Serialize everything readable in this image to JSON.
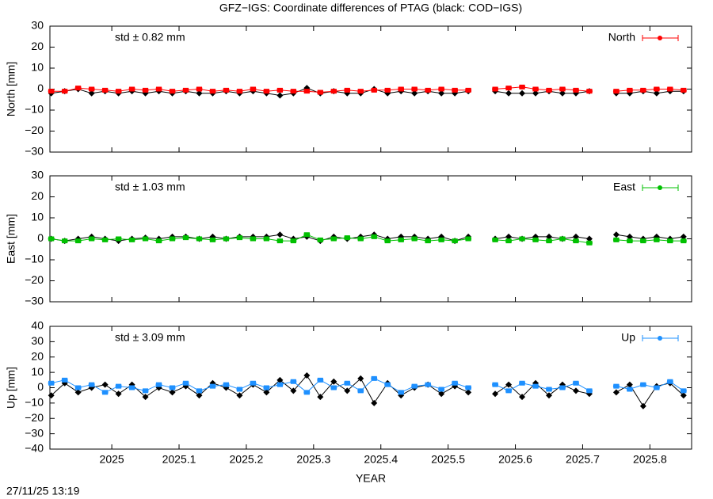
{
  "title": "GFZ−IGS: Coordinate differences of PTAG (black: COD−IGS)",
  "timestamp": "27/11/25 13:19",
  "chart_data": [
    {
      "type": "line",
      "y_label": "North [mm]",
      "annotation": "std ± 0.82 mm",
      "xlim": [
        2024.908,
        2025.862
      ],
      "xticks": [
        2025,
        2025.1,
        2025.2,
        2025.3,
        2025.4,
        2025.5,
        2025.6,
        2025.7,
        2025.8
      ],
      "ylim": [
        -30,
        30
      ],
      "yticks": [
        {
          "value": -30,
          "label": "−30"
        },
        {
          "value": -20,
          "label": "−20"
        },
        {
          "value": -10,
          "label": "−10"
        },
        0,
        10,
        20,
        30
      ],
      "x": [
        2024.91,
        2024.93,
        2024.95,
        2024.97,
        2024.99,
        2025.01,
        2025.03,
        2025.05,
        2025.07,
        2025.09,
        2025.11,
        2025.13,
        2025.15,
        2025.17,
        2025.19,
        2025.21,
        2025.23,
        2025.25,
        2025.27,
        2025.29,
        2025.31,
        2025.33,
        2025.35,
        2025.37,
        2025.39,
        2025.41,
        2025.43,
        2025.45,
        2025.47,
        2025.49,
        2025.51,
        2025.53,
        2025.55,
        2025.57,
        2025.59,
        2025.61,
        2025.63,
        2025.65,
        2025.67,
        2025.69,
        2025.71,
        2025.73,
        2025.75,
        2025.77,
        2025.79,
        2025.81,
        2025.83,
        2025.85
      ],
      "series": [
        {
          "color": "#000000",
          "values": [
            -2,
            -1,
            0,
            -2,
            -1,
            -2,
            -1,
            -2,
            -1,
            -2,
            -1,
            -2,
            -2,
            -1,
            -2,
            -1,
            -2,
            -3,
            -2,
            0.5,
            -2,
            -1,
            -2,
            -2,
            0,
            -2,
            -1,
            -2,
            -1,
            -2,
            -2,
            -1,
            null,
            -1,
            -2,
            -2,
            -2,
            -1,
            -2,
            -2,
            -1,
            null,
            -2,
            -2,
            -1,
            -2,
            -1,
            -1
          ]
        },
        {
          "name": "North",
          "color": "#ff0000",
          "values": [
            -1,
            -1,
            0.5,
            0,
            -0.5,
            -1,
            0,
            -0.5,
            0,
            -1,
            -0.5,
            0,
            -1,
            -0.5,
            -1,
            0,
            -1,
            -0.5,
            -1,
            -1,
            -1.5,
            -1,
            -0.5,
            -1,
            -0.5,
            -0.5,
            0,
            0,
            -0.5,
            0,
            -0.5,
            -0.5,
            null,
            0,
            0.5,
            1,
            0,
            -0.5,
            0,
            -0.5,
            -1,
            null,
            -1,
            -0.5,
            -0.5,
            0,
            0,
            -0.5
          ]
        }
      ]
    },
    {
      "type": "line",
      "y_label": "East [mm]",
      "annotation": "std ± 1.03 mm",
      "xlim": [
        2024.908,
        2025.862
      ],
      "xticks": [
        2025,
        2025.1,
        2025.2,
        2025.3,
        2025.4,
        2025.5,
        2025.6,
        2025.7,
        2025.8
      ],
      "ylim": [
        -30,
        30
      ],
      "yticks": [
        {
          "value": -30,
          "label": "−30"
        },
        {
          "value": -20,
          "label": "−20"
        },
        {
          "value": -10,
          "label": "−10"
        },
        0,
        10,
        20,
        30
      ],
      "x": [
        2024.91,
        2024.93,
        2024.95,
        2024.97,
        2024.99,
        2025.01,
        2025.03,
        2025.05,
        2025.07,
        2025.09,
        2025.11,
        2025.13,
        2025.15,
        2025.17,
        2025.19,
        2025.21,
        2025.23,
        2025.25,
        2025.27,
        2025.29,
        2025.31,
        2025.33,
        2025.35,
        2025.37,
        2025.39,
        2025.41,
        2025.43,
        2025.45,
        2025.47,
        2025.49,
        2025.51,
        2025.53,
        2025.55,
        2025.57,
        2025.59,
        2025.61,
        2025.63,
        2025.65,
        2025.67,
        2025.69,
        2025.71,
        2025.73,
        2025.75,
        2025.77,
        2025.79,
        2025.81,
        2025.83,
        2025.85
      ],
      "series": [
        {
          "color": "#000000",
          "values": [
            0,
            -1,
            0,
            1,
            0,
            -1,
            0,
            0.5,
            0,
            1,
            1,
            0,
            1,
            0,
            1,
            1,
            1,
            2,
            0,
            1,
            -1,
            1,
            0,
            1,
            2,
            0,
            1,
            1,
            0,
            1,
            -1,
            1,
            null,
            0,
            1,
            0,
            1,
            1,
            0,
            1,
            0,
            null,
            2,
            1,
            0,
            1,
            0,
            1
          ]
        },
        {
          "name": "East",
          "color": "#00c000",
          "values": [
            0,
            -1,
            -1,
            0,
            -0.5,
            0,
            -0.5,
            0,
            -1,
            0,
            0.5,
            0,
            -0.5,
            0,
            0.5,
            0,
            0,
            -1,
            -1,
            2,
            -0.5,
            0,
            0.5,
            0,
            1,
            -1,
            -0.5,
            0,
            -1,
            -0.5,
            -1,
            0,
            null,
            -0.5,
            -1,
            0,
            -0.5,
            -1,
            0,
            -1,
            -2,
            null,
            -0.5,
            -1,
            -1,
            -0.5,
            -1,
            -1
          ]
        }
      ]
    },
    {
      "type": "line",
      "y_label": "Up [mm]",
      "annotation": "std ± 3.09 mm",
      "x_label": "YEAR",
      "xlim": [
        2024.908,
        2025.862
      ],
      "xticks": [
        2025,
        2025.1,
        2025.2,
        2025.3,
        2025.4,
        2025.5,
        2025.6,
        2025.7,
        2025.8
      ],
      "ylim": [
        -40,
        40
      ],
      "yticks": [
        {
          "value": -40,
          "label": "−40"
        },
        {
          "value": -30,
          "label": "−30"
        },
        {
          "value": -20,
          "label": "−20"
        },
        {
          "value": -10,
          "label": "−10"
        },
        0,
        10,
        20,
        30,
        40
      ],
      "x": [
        2024.91,
        2024.93,
        2024.95,
        2024.97,
        2024.99,
        2025.01,
        2025.03,
        2025.05,
        2025.07,
        2025.09,
        2025.11,
        2025.13,
        2025.15,
        2025.17,
        2025.19,
        2025.21,
        2025.23,
        2025.25,
        2025.27,
        2025.29,
        2025.31,
        2025.33,
        2025.35,
        2025.37,
        2025.39,
        2025.41,
        2025.43,
        2025.45,
        2025.47,
        2025.49,
        2025.51,
        2025.53,
        2025.55,
        2025.57,
        2025.59,
        2025.61,
        2025.63,
        2025.65,
        2025.67,
        2025.69,
        2025.71,
        2025.73,
        2025.75,
        2025.77,
        2025.79,
        2025.81,
        2025.83,
        2025.85
      ],
      "series": [
        {
          "color": "#000000",
          "values": [
            -5,
            3,
            -3,
            0,
            2,
            -4,
            2,
            -6,
            0,
            -3,
            1,
            -5,
            3,
            0,
            -5,
            2,
            -3,
            5,
            -2,
            8,
            -6,
            4,
            -2,
            6,
            -10,
            3,
            -5,
            0,
            2,
            -4,
            1,
            -3,
            null,
            -4,
            2,
            -6,
            3,
            -5,
            2,
            -2,
            -4,
            null,
            -3,
            2,
            -12,
            1,
            3,
            -5
          ]
        },
        {
          "name": "Up",
          "color": "#1e90ff",
          "values": [
            3,
            5,
            0,
            2,
            -3,
            1,
            0,
            -2,
            2,
            0,
            3,
            -2,
            1,
            2,
            -1,
            3,
            0,
            2,
            4,
            -3,
            5,
            0,
            3,
            -2,
            6,
            2,
            -3,
            1,
            2,
            -1,
            3,
            0,
            null,
            2,
            -2,
            3,
            1,
            -1,
            0,
            3,
            -2,
            null,
            1,
            -1,
            2,
            0,
            4,
            -2
          ]
        }
      ]
    }
  ]
}
